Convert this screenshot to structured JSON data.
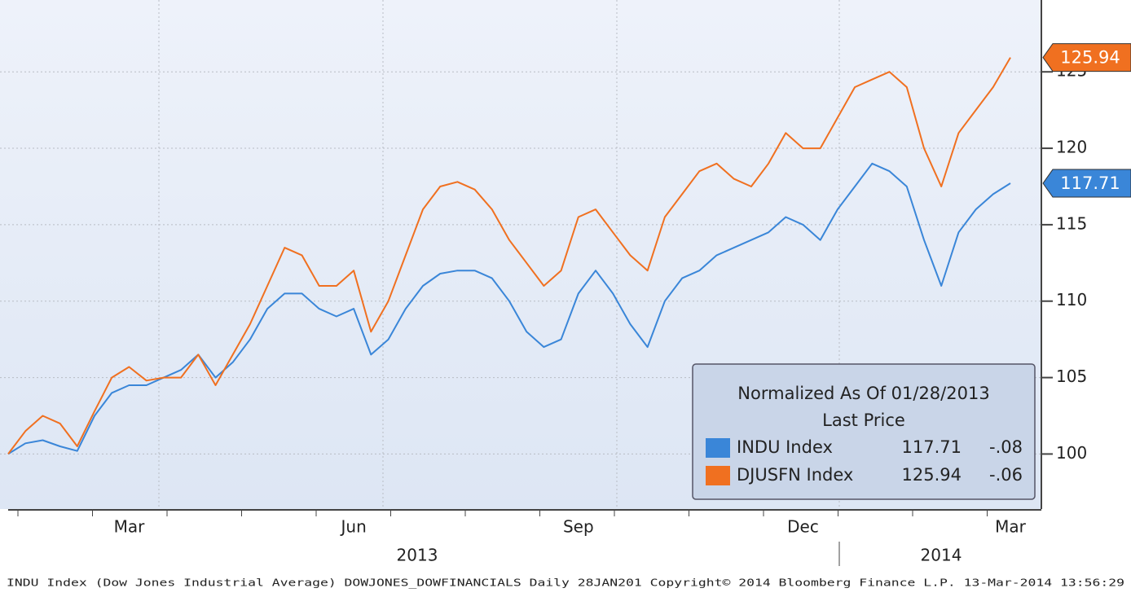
{
  "chart_data": {
    "type": "line",
    "categories": [
      null,
      null,
      null,
      null,
      null,
      null,
      null,
      "Mar",
      null,
      null,
      null,
      null,
      null,
      null,
      null,
      null,
      null,
      null,
      null,
      null,
      "Jun",
      null,
      null,
      null,
      null,
      null,
      null,
      null,
      null,
      null,
      null,
      null,
      null,
      "Sep",
      null,
      null,
      null,
      null,
      null,
      null,
      null,
      null,
      null,
      null,
      null,
      null,
      "Dec",
      null,
      null,
      null,
      null,
      null,
      null,
      null,
      null,
      null,
      null,
      null,
      "Mar"
    ],
    "year_labels": [
      "2013",
      "2014"
    ],
    "series": [
      {
        "name": "INDU Index",
        "color": "#3a86d8",
        "change": "-.08",
        "values": [
          100,
          100.7,
          100.9,
          100.5,
          100.2,
          102.5,
          104,
          104.5,
          104.5,
          105,
          105.5,
          106.5,
          105,
          106,
          107.5,
          109.5,
          110.5,
          110.5,
          109.5,
          109,
          109.5,
          106.5,
          107.5,
          109.5,
          111,
          111.8,
          112,
          112,
          111.5,
          110,
          108,
          107,
          107.5,
          110.5,
          112,
          110.5,
          108.5,
          107,
          110,
          111.5,
          112,
          113,
          113.5,
          114,
          114.5,
          115.5,
          115,
          114,
          116,
          117.5,
          119,
          118.5,
          117.5,
          114,
          111,
          114.5,
          116,
          117,
          117.71
        ]
      },
      {
        "name": "DJUSFN Index",
        "color": "#f07020",
        "change": "-.06",
        "values": [
          100,
          101.5,
          102.5,
          102,
          100.5,
          102.8,
          105,
          105.7,
          104.8,
          105,
          105,
          106.5,
          104.5,
          106.5,
          108.5,
          111,
          113.5,
          113,
          111,
          111,
          112,
          108,
          110,
          113,
          116,
          117.5,
          117.8,
          117.3,
          116,
          114,
          112.5,
          111,
          112,
          115.5,
          116,
          114.5,
          113,
          112,
          115.5,
          117,
          118.5,
          119,
          118,
          117.5,
          119,
          121,
          120,
          120,
          122,
          124,
          124.5,
          125,
          124,
          120,
          117.5,
          121,
          122.5,
          124,
          125.94
        ]
      }
    ],
    "legend_title": "Normalized As Of 01/28/2013",
    "legend_subtitle": "Last Price",
    "ylim": [
      96.4,
      129.7
    ],
    "yticks": [
      100,
      105,
      110,
      115,
      120,
      125
    ],
    "grid": true,
    "footer": "INDU Index (Dow Jones Industrial Average) DOWJONES_DOWFINANCIALS  Daily 28JAN201  Copyright© 2014 Bloomberg Finance L.P.  13-Mar-2014 13:56:29"
  }
}
